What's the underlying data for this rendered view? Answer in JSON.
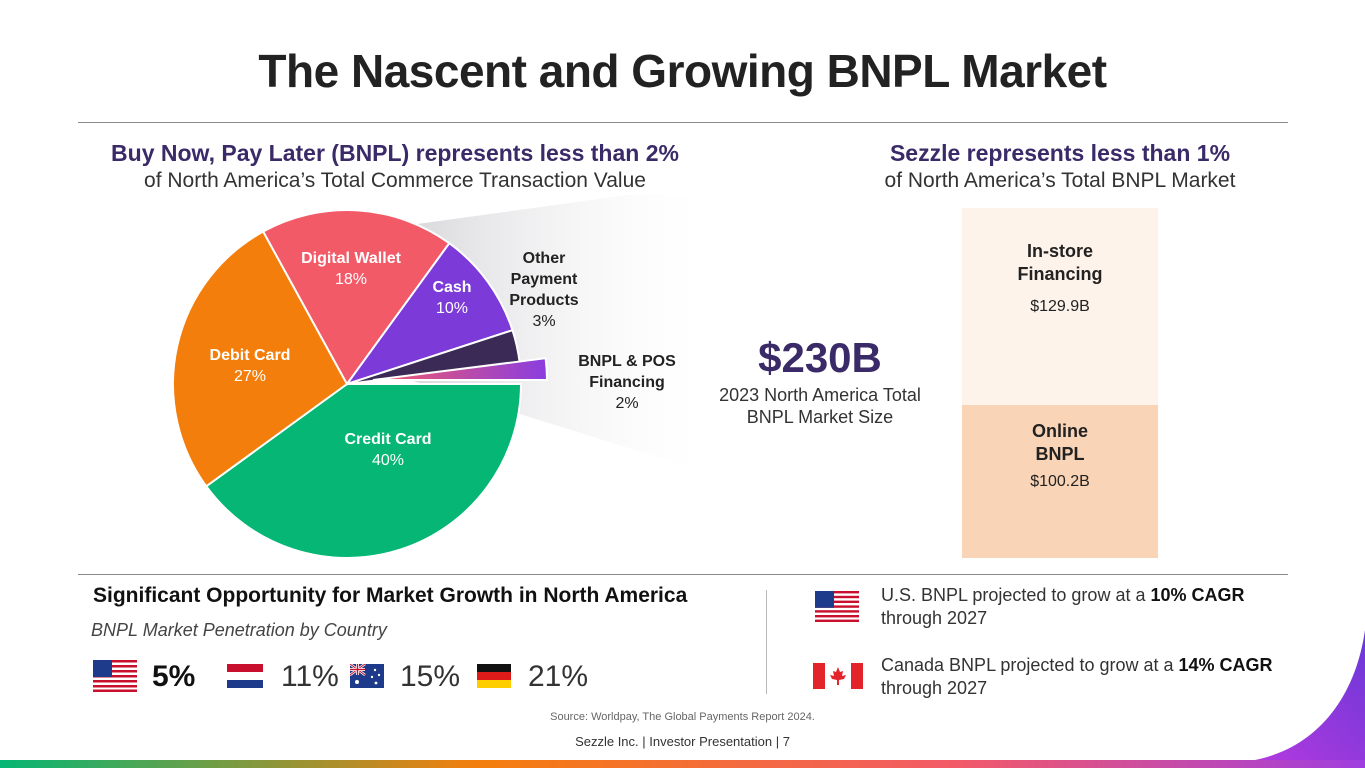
{
  "title": "The Nascent and Growing BNPL Market",
  "left_header": {
    "highlight": "Buy Now, Pay Later (BNPL) represents less than 2%",
    "sub": "of North America’s Total Commerce Transaction Value"
  },
  "right_header": {
    "highlight": "Sezzle represents less than 1%",
    "sub": "of North America’s Total BNPL Market"
  },
  "chart_data": [
    {
      "type": "pie",
      "title": "North America Total Commerce Transaction Value",
      "slices": [
        {
          "label": "Credit Card",
          "value": 40,
          "pct": "40%",
          "color": "#05b674"
        },
        {
          "label": "Debit Card",
          "value": 27,
          "pct": "27%",
          "color": "#f47e0c"
        },
        {
          "label": "Digital Wallet",
          "value": 18,
          "pct": "18%",
          "color": "#f35a68"
        },
        {
          "label": "Cash",
          "value": 10,
          "pct": "10%",
          "color": "#7c3ad8"
        },
        {
          "label": "Other Payment Products",
          "value": 3,
          "pct": "3%",
          "color": "#3a2a55"
        },
        {
          "label": "BNPL & POS Financing",
          "value": 2,
          "pct": "2%",
          "color": "#9f3de0"
        }
      ]
    },
    {
      "type": "bar",
      "stacked": true,
      "title": "2023 North America Total BNPL Market Size",
      "total_label": "$230B",
      "caption": "2023 North America Total BNPL Market Size",
      "unit": "$B",
      "segments": [
        {
          "label": "In-store Financing",
          "value": 129.9,
          "display": "$129.9B",
          "color": "#fef3ea"
        },
        {
          "label": "Online BNPL",
          "value": 100.2,
          "display": "$100.2B",
          "color": "#fad4b6"
        }
      ]
    }
  ],
  "opportunity": {
    "title": "Significant Opportunity for Market Growth in North America",
    "subtitle": "BNPL Market Penetration by Country",
    "countries": [
      {
        "country": "United States",
        "flag": "us-flag-icon",
        "value": "5%"
      },
      {
        "country": "Netherlands",
        "flag": "netherlands-flag-icon",
        "value": "11%"
      },
      {
        "country": "Australia",
        "flag": "australia-flag-icon",
        "value": "15%"
      },
      {
        "country": "Germany",
        "flag": "germany-flag-icon",
        "value": "21%"
      }
    ]
  },
  "projections": [
    {
      "flag": "us-flag-icon",
      "text_pre": "U.S. BNPL projected to grow at a ",
      "bold": "10% CAGR",
      "text_post": "through 2027"
    },
    {
      "flag": "canada-flag-icon",
      "text_pre": "Canada BNPL projected to grow at a ",
      "bold": "14% CAGR",
      "text_post": "through 2027"
    }
  ],
  "source": "Source: Worldpay, The Global Payments Report 2024.",
  "footer": "Sezzle Inc. | Investor Presentation | 7",
  "colors": {
    "accent": "#3a2a68",
    "gradient": [
      "#05b674",
      "#f47e0c",
      "#f35a68",
      "#9f3de0"
    ]
  }
}
